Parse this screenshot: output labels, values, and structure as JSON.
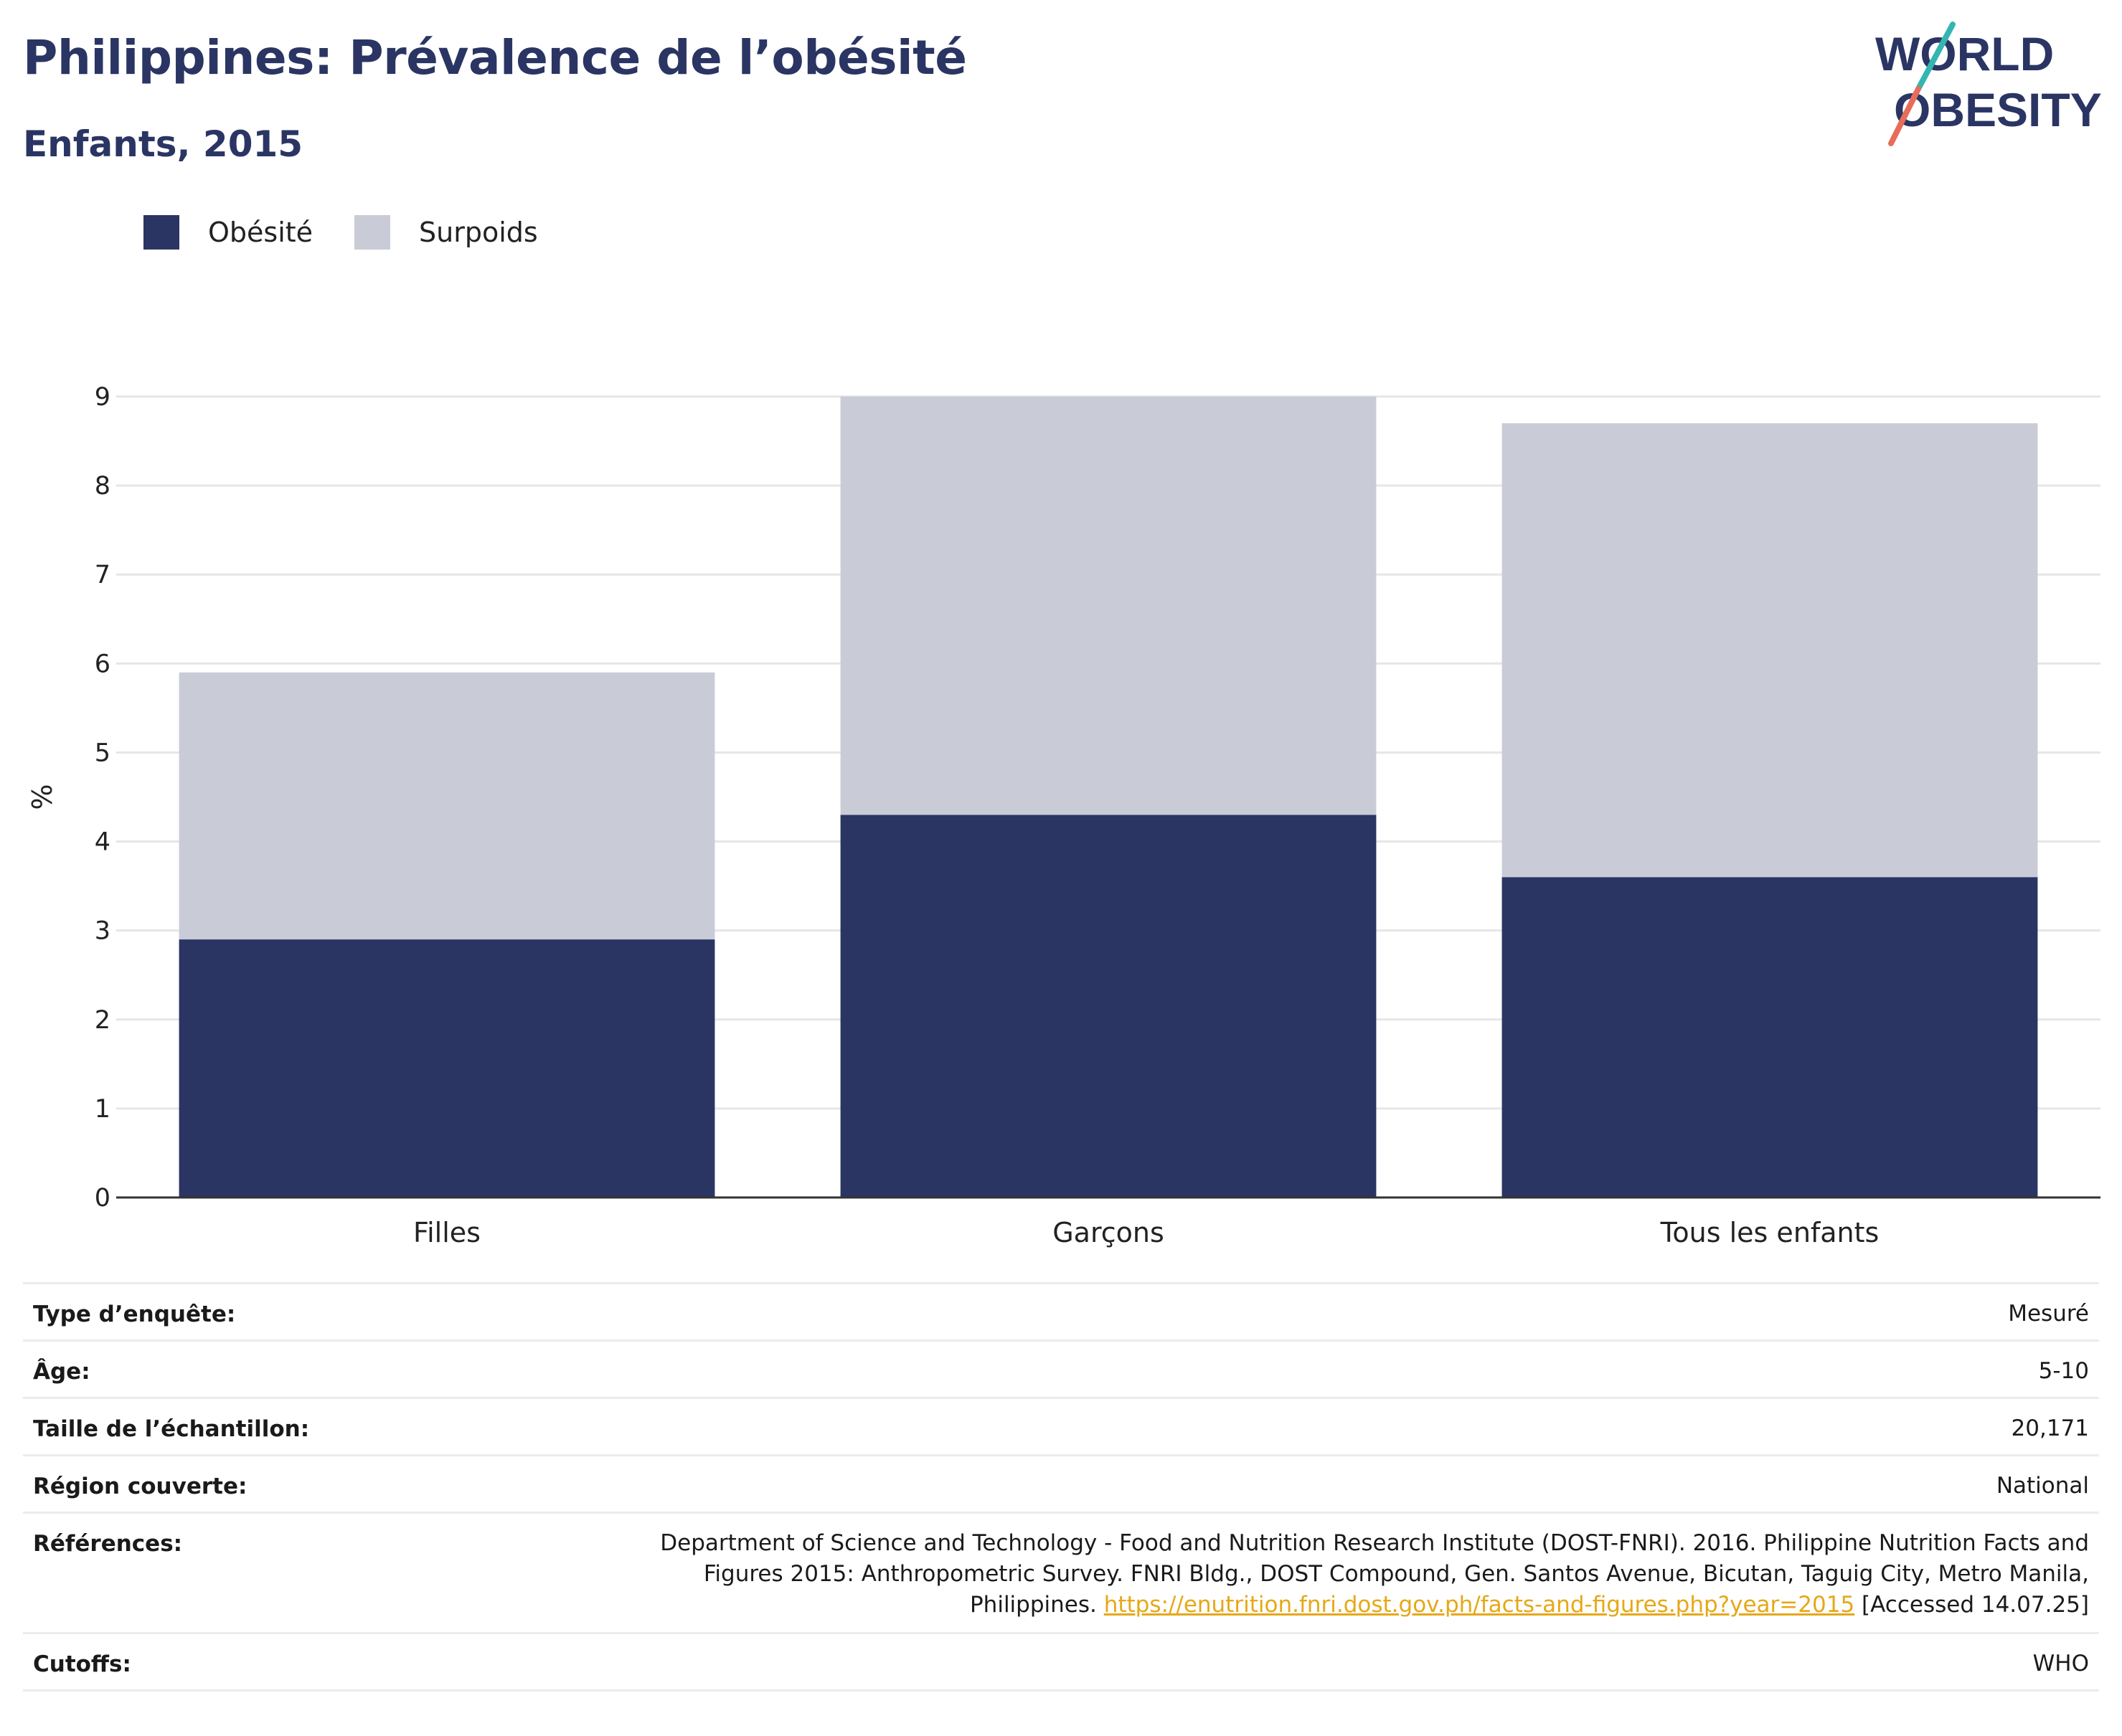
{
  "header": {
    "title": "Philippines: Prévalence de l’obésité",
    "subtitle": "Enfants, 2015"
  },
  "logo": {
    "line1": "WORLD",
    "line2": "OBESITY",
    "name": "world-obesity-logo"
  },
  "legend": {
    "items": [
      {
        "label": "Obésité",
        "color": "#2a3563"
      },
      {
        "label": "Surpoids",
        "color": "#c9cbd6"
      }
    ]
  },
  "chart_data": {
    "type": "bar",
    "stacked": true,
    "categories": [
      "Filles",
      "Garçons",
      "Tous les enfants"
    ],
    "series": [
      {
        "name": "Obésité",
        "color": "#2a3563",
        "values": [
          2.9,
          4.3,
          3.6
        ]
      },
      {
        "name": "Surpoids",
        "color": "#c9cbd6",
        "values": [
          3.0,
          4.7,
          5.1
        ]
      }
    ],
    "ylabel": "%",
    "xlabel": "",
    "ylim": [
      0,
      9
    ],
    "yticks": [
      0,
      1,
      2,
      3,
      4,
      5,
      6,
      7,
      8,
      9
    ],
    "grid": true,
    "legend_position": "top-left"
  },
  "meta": {
    "survey_type_label": "Type d’enquête:",
    "survey_type_value": "Mesuré",
    "age_label": "Âge:",
    "age_value": "5-10",
    "sample_label": "Taille de l’échantillon:",
    "sample_value": "20,171",
    "region_label": "Région couverte:",
    "region_value": "National",
    "references_label": "Références:",
    "references_line1": "Department of Science and Technology - Food and Nutrition Research Institute (DOST-FNRI). 2016. Philippine Nutrition Facts and",
    "references_line2": "Figures 2015: Anthropometric Survey. FNRI Bldg., DOST Compound, Gen. Santos Avenue, Bicutan, Taguig City, Metro Manila,",
    "references_line3_prefix": "Philippines.",
    "references_link": "https://enutrition.fnri.dost.gov.ph/facts-and-figures.php?year=2015",
    "references_suffix": "[Accessed 14.07.25]",
    "cutoffs_label": "Cutoffs:",
    "cutoffs_value": "WHO"
  }
}
